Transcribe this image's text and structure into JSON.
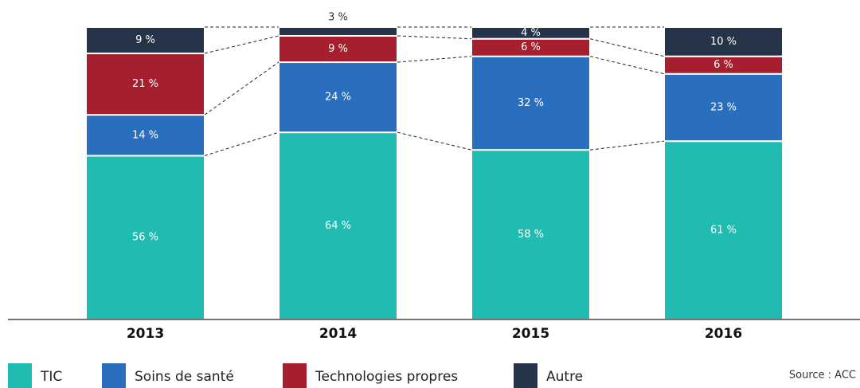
{
  "chart_data": {
    "type": "stacked_bar",
    "categories": [
      "2013",
      "2014",
      "2015",
      "2016"
    ],
    "series": [
      {
        "name": "TIC",
        "color": "#20bcb2",
        "values": [
          56,
          64,
          58,
          61
        ],
        "value_labels": [
          "56 %",
          "64 %",
          "58 %",
          "61 %"
        ]
      },
      {
        "name": "Soins de santé",
        "color": "#2a6fbd",
        "values": [
          14,
          24,
          32,
          23
        ],
        "value_labels": [
          "14 %",
          "24 %",
          "32 %",
          "23 %"
        ]
      },
      {
        "name": "Technologies propres",
        "color": "#a51f2e",
        "values": [
          21,
          9,
          6,
          6
        ],
        "value_labels": [
          "21 %",
          "9 %",
          "6 %",
          "6 %"
        ]
      },
      {
        "name": "Autre",
        "color": "#253449",
        "values": [
          9,
          3,
          4,
          10
        ],
        "value_labels": [
          "9 %",
          "3 %",
          "4 %",
          "10 %"
        ]
      }
    ],
    "ylim": [
      0,
      100
    ],
    "source": "Source : ACC"
  }
}
